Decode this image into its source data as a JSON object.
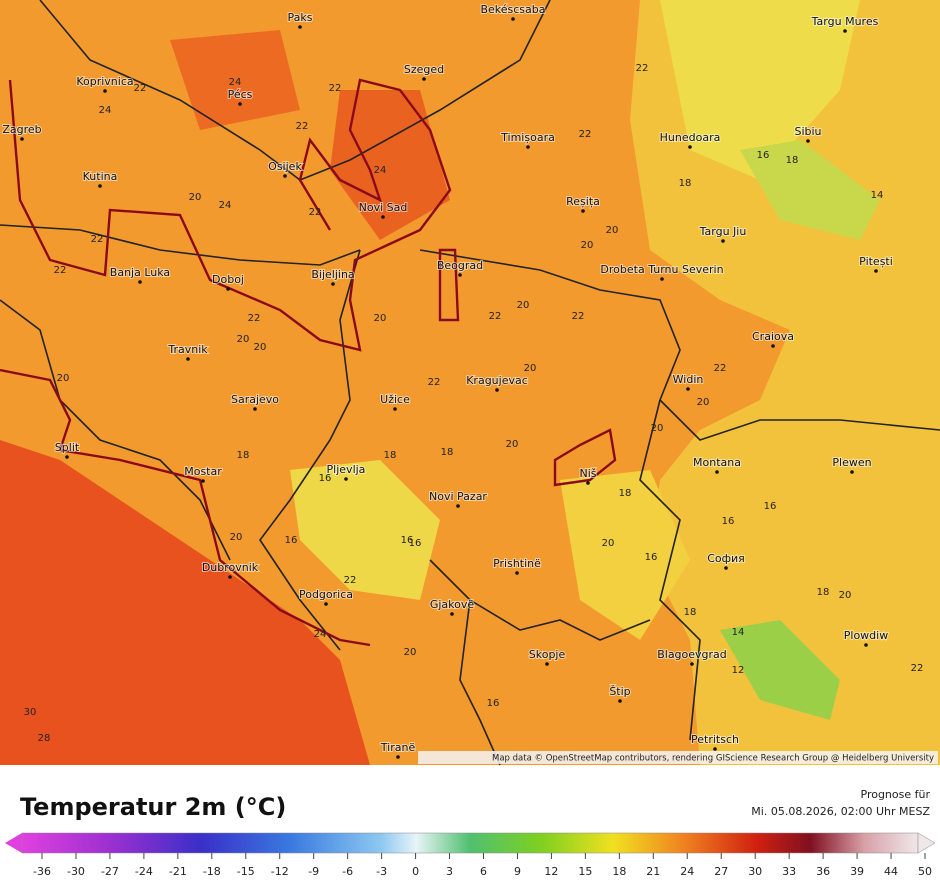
{
  "map": {
    "cities": [
      "Paks",
      "Bekéscsaba",
      "Targu Mures",
      "Koprivnica",
      "Pécs",
      "Szeged",
      "Zagreb",
      "Timișoara",
      "Hunedoara",
      "Sibiu",
      "Osijek",
      "Kutina",
      "Reșița",
      "Novi Sad",
      "Targu Jiu",
      "Banja Luka",
      "Doboj",
      "Bijeljina",
      "Beograd",
      "Drobeta Turnu Severin",
      "Pitești",
      "Travnik",
      "Craiova",
      "Kragujevac",
      "Sarajevo",
      "Užice",
      "Widin",
      "Split",
      "Mostar",
      "Pljevlja",
      "Niš",
      "Montana",
      "Plewen",
      "Novi Pazar",
      "Prishtinë",
      "София",
      "Dubrovnik",
      "Podgorica",
      "Gjakovë",
      "Plowdiw",
      "Skopje",
      "Blagoevgrad",
      "Štip",
      "Tiranë",
      "Petritsch"
    ],
    "contour_labels": [
      22,
      24,
      22,
      24,
      20,
      24,
      22,
      22,
      24,
      22,
      22,
      16,
      18,
      18,
      14,
      20,
      20,
      22,
      22,
      20,
      22,
      20,
      22,
      20,
      20,
      20,
      22,
      22,
      20,
      22,
      20,
      18,
      18,
      20,
      18,
      16,
      16,
      20,
      16,
      18,
      20,
      16,
      16,
      18,
      20,
      18,
      14,
      16,
      12,
      22,
      20,
      16,
      30,
      28,
      24,
      22,
      20,
      16
    ],
    "attribution": "Map data © OpenStreetMap contributors, rendering GIScience Research Group @ Heidelberg University"
  },
  "legend": {
    "title": "Temperatur 2m (°C)",
    "forecast_label": "Prognose für",
    "forecast_time": "Mi. 05.08.2026, 02:00 Uhr MESZ",
    "ticks": [
      -36,
      -30,
      -27,
      -24,
      -21,
      -18,
      -15,
      -12,
      -9,
      -6,
      -3,
      0,
      3,
      6,
      9,
      12,
      15,
      18,
      21,
      24,
      27,
      30,
      33,
      36,
      39,
      44,
      50
    ]
  }
}
